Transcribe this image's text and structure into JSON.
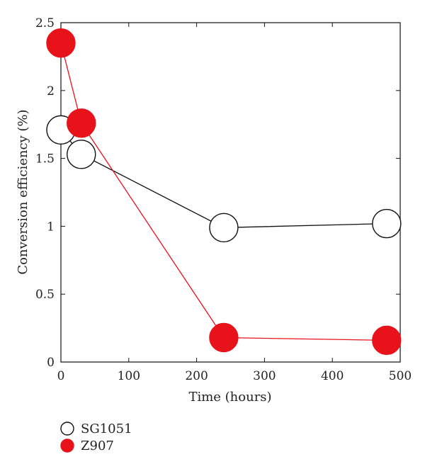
{
  "chart_data": {
    "type": "line",
    "xlabel": "Time (hours)",
    "ylabel": "Conversion efficiency  (%)",
    "xlim": [
      0,
      500
    ],
    "ylim": [
      0,
      2.5
    ],
    "xticks": [
      0,
      100,
      200,
      300,
      400,
      500
    ],
    "yticks": [
      0,
      0.5,
      1,
      1.5,
      2,
      2.5
    ],
    "grid": false,
    "legend_position": "bottom-left",
    "series": [
      {
        "name": "SG1051",
        "marker": "open-circle",
        "line_color": "#111111",
        "marker_fill": "#ffffff",
        "marker_stroke": "#111111",
        "x": [
          0,
          30,
          240,
          480
        ],
        "y": [
          1.71,
          1.53,
          0.99,
          1.02
        ]
      },
      {
        "name": "Z907",
        "marker": "filled-circle",
        "line_color": "#e8121a",
        "marker_fill": "#e8121a",
        "marker_stroke": "#e8121a",
        "x": [
          0,
          30,
          240,
          480
        ],
        "y": [
          2.35,
          1.76,
          0.18,
          0.16
        ]
      }
    ]
  }
}
